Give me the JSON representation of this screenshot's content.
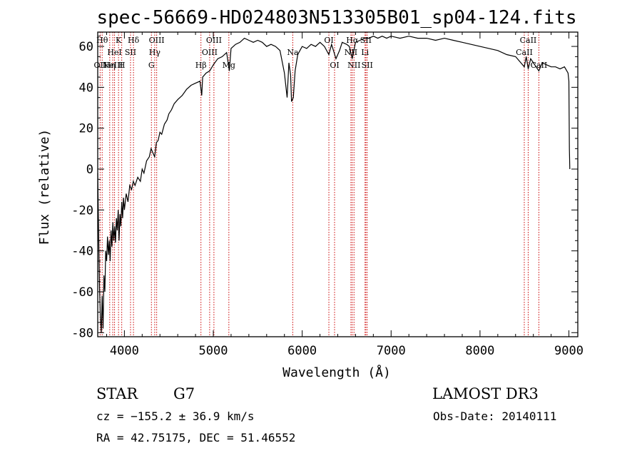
{
  "chart_data": {
    "type": "line",
    "title": "spec-56669-HD024803N513305B01_sp04-124.fits",
    "xlabel": "Wavelength (Å)",
    "ylabel": "Flux (relative)",
    "xlim": [
      3700,
      9100
    ],
    "ylim": [
      -82,
      67
    ],
    "xticks": [
      4000,
      5000,
      6000,
      7000,
      8000,
      9000
    ],
    "yticks": [
      -80,
      -60,
      -40,
      -20,
      0,
      20,
      40,
      60
    ],
    "series": [
      {
        "name": "flux",
        "points": [
          [
            3700,
            -2
          ],
          [
            3710,
            -30
          ],
          [
            3720,
            -58
          ],
          [
            3730,
            -72
          ],
          [
            3740,
            -80
          ],
          [
            3750,
            -62
          ],
          [
            3760,
            -78
          ],
          [
            3770,
            -52
          ],
          [
            3780,
            -60
          ],
          [
            3790,
            -40
          ],
          [
            3800,
            -45
          ],
          [
            3810,
            -33
          ],
          [
            3820,
            -42
          ],
          [
            3830,
            -35
          ],
          [
            3840,
            -45
          ],
          [
            3850,
            -30
          ],
          [
            3860,
            -38
          ],
          [
            3870,
            -26
          ],
          [
            3880,
            -35
          ],
          [
            3890,
            -28
          ],
          [
            3900,
            -36
          ],
          [
            3910,
            -24
          ],
          [
            3920,
            -30
          ],
          [
            3930,
            -20
          ],
          [
            3940,
            -35
          ],
          [
            3950,
            -22
          ],
          [
            3960,
            -28
          ],
          [
            3970,
            -16
          ],
          [
            3980,
            -24
          ],
          [
            3990,
            -14
          ],
          [
            4000,
            -20
          ],
          [
            4020,
            -12
          ],
          [
            4040,
            -16
          ],
          [
            4060,
            -8
          ],
          [
            4080,
            -10
          ],
          [
            4100,
            -6
          ],
          [
            4120,
            -8
          ],
          [
            4150,
            -4
          ],
          [
            4180,
            -6
          ],
          [
            4200,
            0
          ],
          [
            4220,
            -2
          ],
          [
            4250,
            4
          ],
          [
            4280,
            6
          ],
          [
            4300,
            10
          ],
          [
            4320,
            8
          ],
          [
            4340,
            6
          ],
          [
            4360,
            13
          ],
          [
            4380,
            14
          ],
          [
            4400,
            18
          ],
          [
            4420,
            17
          ],
          [
            4450,
            22
          ],
          [
            4480,
            24
          ],
          [
            4500,
            27
          ],
          [
            4530,
            29
          ],
          [
            4560,
            32
          ],
          [
            4600,
            34
          ],
          [
            4650,
            36
          ],
          [
            4700,
            39
          ],
          [
            4750,
            41
          ],
          [
            4800,
            42
          ],
          [
            4850,
            43
          ],
          [
            4870,
            36
          ],
          [
            4880,
            45
          ],
          [
            4920,
            47
          ],
          [
            4960,
            48
          ],
          [
            5000,
            51
          ],
          [
            5050,
            54
          ],
          [
            5100,
            55
          ],
          [
            5150,
            57
          ],
          [
            5180,
            48
          ],
          [
            5200,
            59
          ],
          [
            5250,
            61
          ],
          [
            5300,
            62
          ],
          [
            5350,
            64
          ],
          [
            5400,
            63
          ],
          [
            5450,
            62
          ],
          [
            5500,
            63
          ],
          [
            5550,
            62
          ],
          [
            5600,
            60
          ],
          [
            5650,
            61
          ],
          [
            5700,
            60
          ],
          [
            5750,
            58
          ],
          [
            5800,
            47
          ],
          [
            5830,
            35
          ],
          [
            5850,
            52
          ],
          [
            5870,
            46
          ],
          [
            5880,
            33
          ],
          [
            5900,
            35
          ],
          [
            5920,
            48
          ],
          [
            5950,
            56
          ],
          [
            6000,
            60
          ],
          [
            6050,
            59
          ],
          [
            6100,
            61
          ],
          [
            6150,
            60
          ],
          [
            6200,
            62
          ],
          [
            6250,
            60
          ],
          [
            6300,
            56
          ],
          [
            6330,
            61
          ],
          [
            6380,
            54
          ],
          [
            6420,
            58
          ],
          [
            6450,
            62
          ],
          [
            6500,
            61
          ],
          [
            6530,
            60
          ],
          [
            6563,
            54
          ],
          [
            6600,
            62
          ],
          [
            6650,
            63
          ],
          [
            6700,
            64
          ],
          [
            6750,
            64
          ],
          [
            6800,
            65
          ],
          [
            6850,
            64
          ],
          [
            6900,
            65
          ],
          [
            6950,
            64
          ],
          [
            7000,
            65
          ],
          [
            7100,
            64
          ],
          [
            7200,
            65
          ],
          [
            7300,
            64
          ],
          [
            7400,
            64
          ],
          [
            7500,
            63
          ],
          [
            7600,
            64
          ],
          [
            7700,
            63
          ],
          [
            7800,
            62
          ],
          [
            7900,
            61
          ],
          [
            8000,
            60
          ],
          [
            8100,
            59
          ],
          [
            8200,
            58
          ],
          [
            8300,
            56
          ],
          [
            8400,
            55
          ],
          [
            8498,
            50
          ],
          [
            8520,
            55
          ],
          [
            8542,
            49
          ],
          [
            8570,
            54
          ],
          [
            8600,
            52
          ],
          [
            8662,
            48
          ],
          [
            8700,
            52
          ],
          [
            8750,
            51
          ],
          [
            8800,
            50
          ],
          [
            8850,
            50
          ],
          [
            8900,
            49
          ],
          [
            8950,
            50
          ],
          [
            8990,
            47
          ],
          [
            9000,
            43
          ],
          [
            9005,
            10
          ],
          [
            9010,
            0
          ]
        ]
      }
    ],
    "lines": [
      {
        "wl": 3750,
        "name": "Hθ",
        "row": 1
      },
      {
        "wl": 3727,
        "name": "OII",
        "row": 3
      },
      {
        "wl": 3835,
        "name": "Hη",
        "row": 3
      },
      {
        "wl": 3869,
        "name": "NeIII",
        "row": 3
      },
      {
        "wl": 3889,
        "name": "HeI",
        "row": 2
      },
      {
        "wl": 3934,
        "name": "K",
        "row": 1
      },
      {
        "wl": 3970,
        "name": "H",
        "row": 3
      },
      {
        "wl": 4069,
        "name": "SII",
        "row": 2
      },
      {
        "wl": 4102,
        "name": "Hδ",
        "row": 1
      },
      {
        "wl": 4304,
        "name": "G",
        "row": 3
      },
      {
        "wl": 4341,
        "name": "Hγ",
        "row": 2
      },
      {
        "wl": 4363,
        "name": "OIII",
        "row": 1
      },
      {
        "wl": 4861,
        "name": "Hβ",
        "row": 3
      },
      {
        "wl": 4959,
        "name": "OIII",
        "row": 2
      },
      {
        "wl": 5007,
        "name": "OIII",
        "row": 1
      },
      {
        "wl": 5175,
        "name": "Mg",
        "row": 3
      },
      {
        "wl": 5894,
        "name": "Na",
        "row": 2
      },
      {
        "wl": 6300,
        "name": "OI",
        "row": 1
      },
      {
        "wl": 6364,
        "name": "OI",
        "row": 3
      },
      {
        "wl": 6548,
        "name": "NII",
        "row": 2
      },
      {
        "wl": 6563,
        "name": "Hα",
        "row": 1
      },
      {
        "wl": 6583,
        "name": "NII",
        "row": 3
      },
      {
        "wl": 6707,
        "name": "Li",
        "row": 2
      },
      {
        "wl": 6716,
        "name": "SII",
        "row": 1
      },
      {
        "wl": 6731,
        "name": "SII",
        "row": 3
      },
      {
        "wl": 8498,
        "name": "CaII",
        "row": 2
      },
      {
        "wl": 8542,
        "name": "CaII",
        "row": 1
      },
      {
        "wl": 8662,
        "name": "CaII",
        "row": 3
      }
    ],
    "colors": {
      "line_marker": "#cc0000",
      "axis": "#000000",
      "spectrum": "#000000"
    }
  },
  "info": {
    "object_type": "STAR",
    "subclass": "G7",
    "survey": "LAMOST DR3",
    "cz": "cz = −155.2 ± 36.9 km/s",
    "obs_date": "Obs-Date: 20140111",
    "coords": "RA =  42.75175, DEC =  51.46552"
  }
}
